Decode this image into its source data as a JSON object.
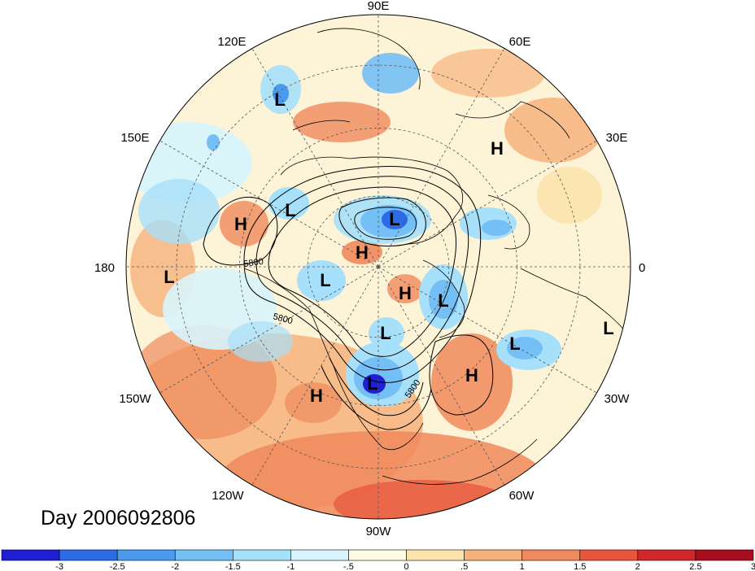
{
  "map": {
    "projection": "north-polar-stereographic",
    "longitude_labels": [
      "90E",
      "60E",
      "30E",
      "0",
      "30W",
      "60W",
      "90W",
      "120W",
      "150W",
      "180",
      "150E",
      "120E"
    ],
    "contour_labels": [
      "5800",
      "5800",
      "5800"
    ],
    "pressure_centers": [
      {
        "type": "H",
        "label": "H"
      },
      {
        "type": "H",
        "label": "H"
      },
      {
        "type": "H",
        "label": "H"
      },
      {
        "type": "H",
        "label": "H"
      },
      {
        "type": "H",
        "label": "H"
      },
      {
        "type": "H",
        "label": "H"
      },
      {
        "type": "L",
        "label": "L"
      },
      {
        "type": "L",
        "label": "L"
      },
      {
        "type": "L",
        "label": "L"
      },
      {
        "type": "L",
        "label": "L"
      },
      {
        "type": "L",
        "label": "L"
      },
      {
        "type": "L",
        "label": "L"
      },
      {
        "type": "L",
        "label": "L"
      },
      {
        "type": "L",
        "label": "L"
      },
      {
        "type": "L",
        "label": "L"
      },
      {
        "type": "L",
        "label": "L"
      }
    ]
  },
  "date_label": "Day 2006092806",
  "colorbar": {
    "tick_labels": [
      "-3",
      "-2.5",
      "-2",
      "-1.5",
      "-1",
      "-.5",
      "0",
      ".5",
      "1",
      "1.5",
      "2",
      "2.5",
      "3"
    ],
    "colors": [
      "#1e1ed2",
      "#2d6ae6",
      "#4a9af0",
      "#74c0f6",
      "#a6e0fa",
      "#d8f4fc",
      "#fdfbe2",
      "#fbe3ac",
      "#f6b27c",
      "#f08a5c",
      "#e8553e",
      "#d0282a",
      "#a80e1e"
    ]
  }
}
